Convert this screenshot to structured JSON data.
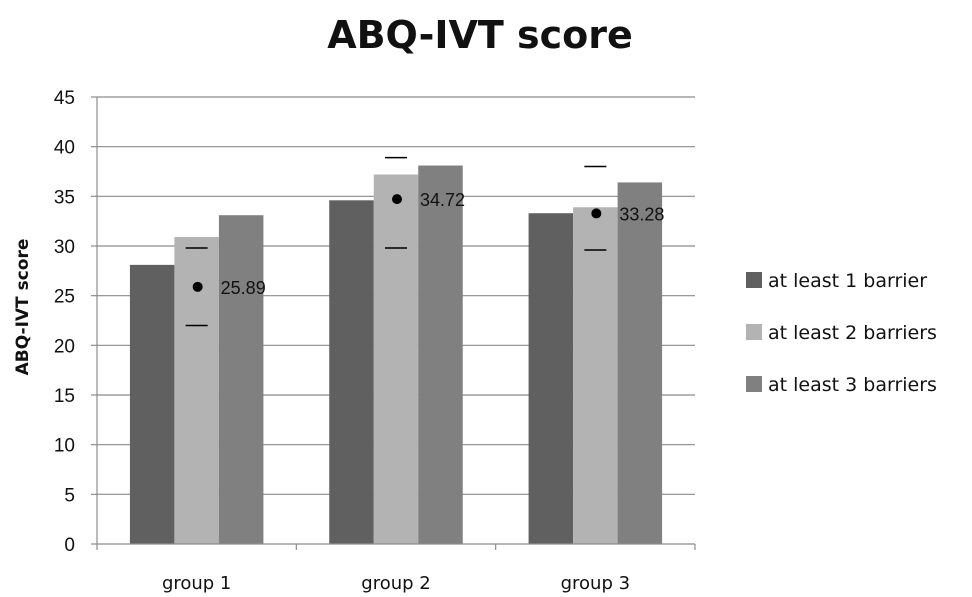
{
  "chart_data": {
    "type": "bar",
    "title": "ABQ-IVT score",
    "xlabel": "",
    "ylabel": "ABQ-IVT score",
    "ylim": [
      0,
      45
    ],
    "yticks": [
      0,
      5,
      10,
      15,
      20,
      25,
      30,
      35,
      40,
      45
    ],
    "grid": true,
    "legend_position": "right",
    "categories": [
      "group 1",
      "group 2",
      "group 3"
    ],
    "series": [
      {
        "name": "at least 1 barrier",
        "color": "#606060",
        "values": [
          28.1,
          34.6,
          33.3
        ]
      },
      {
        "name": "at least 2 barriers",
        "color": "#b3b3b3",
        "values": [
          30.9,
          37.2,
          33.9
        ]
      },
      {
        "name": "at least 3 barriers",
        "color": "#808080",
        "values": [
          33.1,
          38.1,
          36.4
        ]
      }
    ],
    "annotations": [
      {
        "category": "group 1",
        "mean": 25.89,
        "label": "25.89",
        "low": 22.0,
        "high": 29.8
      },
      {
        "category": "group 2",
        "mean": 34.72,
        "label": "34.72",
        "low": 29.8,
        "high": 38.9
      },
      {
        "category": "group 3",
        "mean": 33.28,
        "label": "33.28",
        "low": 29.6,
        "high": 38.0
      }
    ]
  }
}
